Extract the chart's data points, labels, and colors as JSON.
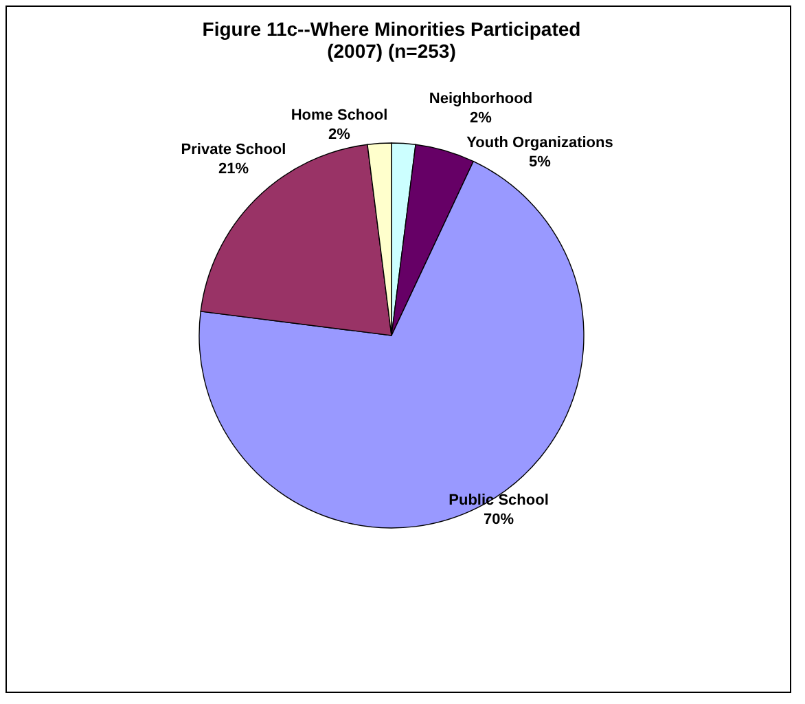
{
  "chart_data": {
    "type": "pie",
    "title": "Figure 11c--Where Minorities Participated (2007) (n=253)",
    "categories": [
      "Neighborhood",
      "Youth Organizations",
      "Public School",
      "Private School",
      "Home School"
    ],
    "values": [
      2,
      5,
      70,
      21,
      2
    ],
    "value_labels": [
      "2%",
      "5%",
      "70%",
      "21%",
      "2%"
    ],
    "colors": [
      "#ccffff",
      "#660066",
      "#9999ff",
      "#993366",
      "#ffffcc"
    ],
    "legend": false
  }
}
